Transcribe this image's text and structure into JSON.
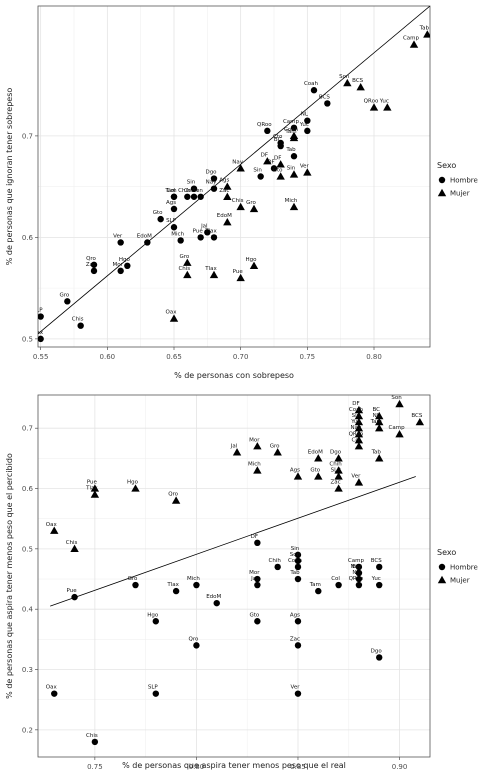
{
  "chart_data": [
    {
      "type": "scatter",
      "xlabel": "% de personas con sobrepeso",
      "ylabel": "% de personas que ignoran tener sobrepeso",
      "xlim": [
        0.548,
        0.842
      ],
      "ylim": [
        0.492,
        0.828
      ],
      "xticks": [
        0.55,
        0.6,
        0.65,
        0.7,
        0.75,
        0.8
      ],
      "xtick_labels": [
        "0.55",
        "0.60",
        "0.65",
        "0.70",
        "0.75",
        "0.80"
      ],
      "yticks": [
        0.5,
        0.6,
        0.7
      ],
      "ytick_labels": [
        "0.5",
        "0.6",
        "0.7"
      ],
      "grid": true,
      "legend": {
        "title": "Sexo",
        "position": "right",
        "entries": [
          {
            "label": "Hombre",
            "shape": "circle"
          },
          {
            "label": "Mujer",
            "shape": "triangle"
          }
        ]
      },
      "trendline": {
        "x": [
          0.548,
          0.842
        ],
        "y": [
          0.505,
          0.828
        ]
      },
      "series": [
        {
          "name": "Hombre",
          "shape": "circle",
          "points": [
            {
              "label": "Oax",
              "x": 0.55,
              "y": 0.5
            },
            {
              "label": "SLP",
              "x": 0.55,
              "y": 0.522
            },
            {
              "label": "Gro",
              "x": 0.57,
              "y": 0.537
            },
            {
              "label": "Chis",
              "x": 0.58,
              "y": 0.513
            },
            {
              "label": "Qro",
              "x": 0.59,
              "y": 0.573
            },
            {
              "label": "Zac",
              "x": 0.59,
              "y": 0.567
            },
            {
              "label": "Mor",
              "x": 0.61,
              "y": 0.567
            },
            {
              "label": "Hgo",
              "x": 0.615,
              "y": 0.572
            },
            {
              "label": "Ver",
              "x": 0.61,
              "y": 0.595
            },
            {
              "label": "EdoM",
              "x": 0.63,
              "y": 0.595
            },
            {
              "label": "Gto",
              "x": 0.64,
              "y": 0.618
            },
            {
              "label": "SLP",
              "x": 0.65,
              "y": 0.61
            },
            {
              "label": "Ags",
              "x": 0.65,
              "y": 0.628
            },
            {
              "label": "Tam",
              "x": 0.65,
              "y": 0.64
            },
            {
              "label": "Col",
              "x": 0.65,
              "y": 0.64
            },
            {
              "label": "Chih",
              "x": 0.66,
              "y": 0.64
            },
            {
              "label": "Coah",
              "x": 0.665,
              "y": 0.64
            },
            {
              "label": "Sin",
              "x": 0.665,
              "y": 0.648
            },
            {
              "label": "Son",
              "x": 0.67,
              "y": 0.64
            },
            {
              "label": "Nay",
              "x": 0.68,
              "y": 0.648
            },
            {
              "label": "Dgo",
              "x": 0.68,
              "y": 0.658
            },
            {
              "label": "Jal",
              "x": 0.675,
              "y": 0.605
            },
            {
              "label": "Pue",
              "x": 0.67,
              "y": 0.6
            },
            {
              "label": "Mich",
              "x": 0.655,
              "y": 0.597
            },
            {
              "label": "Tlax",
              "x": 0.68,
              "y": 0.6
            },
            {
              "label": "QRoo",
              "x": 0.72,
              "y": 0.705
            },
            {
              "label": "BC",
              "x": 0.73,
              "y": 0.69
            },
            {
              "label": "Camp",
              "x": 0.74,
              "y": 0.708
            },
            {
              "label": "Tab",
              "x": 0.74,
              "y": 0.68
            },
            {
              "label": "Cto",
              "x": 0.73,
              "y": 0.693
            },
            {
              "label": "NL",
              "x": 0.75,
              "y": 0.715
            },
            {
              "label": "Yuc",
              "x": 0.75,
              "y": 0.705
            },
            {
              "label": "BCS",
              "x": 0.765,
              "y": 0.732
            },
            {
              "label": "Coah",
              "x": 0.755,
              "y": 0.745
            },
            {
              "label": "DF",
              "x": 0.725,
              "y": 0.668
            },
            {
              "label": "Sin",
              "x": 0.715,
              "y": 0.66
            }
          ]
        },
        {
          "name": "Mujer",
          "shape": "triangle",
          "points": [
            {
              "label": "Oax",
              "x": 0.65,
              "y": 0.52
            },
            {
              "label": "Chis",
              "x": 0.66,
              "y": 0.563
            },
            {
              "label": "Gro",
              "x": 0.66,
              "y": 0.575
            },
            {
              "label": "Tlax",
              "x": 0.68,
              "y": 0.563
            },
            {
              "label": "Pue",
              "x": 0.7,
              "y": 0.56
            },
            {
              "label": "Hgo",
              "x": 0.71,
              "y": 0.572
            },
            {
              "label": "Ags",
              "x": 0.69,
              "y": 0.65
            },
            {
              "label": "Zac",
              "x": 0.69,
              "y": 0.64
            },
            {
              "label": "Chis",
              "x": 0.7,
              "y": 0.63
            },
            {
              "label": "EdoM",
              "x": 0.69,
              "y": 0.615
            },
            {
              "label": "Gro",
              "x": 0.71,
              "y": 0.628
            },
            {
              "label": "Mich",
              "x": 0.74,
              "y": 0.63
            },
            {
              "label": "Nay",
              "x": 0.7,
              "y": 0.668
            },
            {
              "label": "DF",
              "x": 0.72,
              "y": 0.675
            },
            {
              "label": "Gto",
              "x": 0.73,
              "y": 0.66
            },
            {
              "label": "Sin",
              "x": 0.74,
              "y": 0.662
            },
            {
              "label": "Ver",
              "x": 0.75,
              "y": 0.664
            },
            {
              "label": "Tam",
              "x": 0.74,
              "y": 0.698
            },
            {
              "label": "DF",
              "x": 0.73,
              "y": 0.672
            },
            {
              "label": "Coah",
              "x": 0.74,
              "y": 0.7
            },
            {
              "label": "Son",
              "x": 0.78,
              "y": 0.752
            },
            {
              "label": "BCS",
              "x": 0.79,
              "y": 0.748
            },
            {
              "label": "QRoo",
              "x": 0.8,
              "y": 0.728
            },
            {
              "label": "Yuc",
              "x": 0.81,
              "y": 0.728
            },
            {
              "label": "Camp",
              "x": 0.83,
              "y": 0.79
            },
            {
              "label": "Tab",
              "x": 0.84,
              "y": 0.8
            }
          ]
        }
      ]
    },
    {
      "type": "scatter",
      "xlabel": "% de personas que aspira tener menos peso que el real",
      "ylabel": "% de personas que aspira tener menos peso que el percibido",
      "xlim": [
        0.722,
        0.915
      ],
      "ylim": [
        0.155,
        0.755
      ],
      "xticks": [
        0.75,
        0.8,
        0.85,
        0.9
      ],
      "xtick_labels": [
        "0.75",
        "0.80",
        "0.85",
        "0.90"
      ],
      "yticks": [
        0.2,
        0.3,
        0.4,
        0.5,
        0.6,
        0.7
      ],
      "ytick_labels": [
        "0.2",
        "0.3",
        "0.4",
        "0.5",
        "0.6",
        "0.7"
      ],
      "grid": true,
      "legend": {
        "title": "Sexo",
        "position": "right",
        "entries": [
          {
            "label": "Hombre",
            "shape": "circle"
          },
          {
            "label": "Mujer",
            "shape": "triangle"
          }
        ]
      },
      "trendline": {
        "x": [
          0.728,
          0.908
        ],
        "y": [
          0.405,
          0.62
        ]
      },
      "series": [
        {
          "name": "Hombre",
          "shape": "circle",
          "points": [
            {
              "label": "Oax",
              "x": 0.73,
              "y": 0.26
            },
            {
              "label": "Chis",
              "x": 0.75,
              "y": 0.18
            },
            {
              "label": "Pue",
              "x": 0.74,
              "y": 0.42
            },
            {
              "label": "SLP",
              "x": 0.78,
              "y": 0.26
            },
            {
              "label": "Gro",
              "x": 0.77,
              "y": 0.44
            },
            {
              "label": "Hgo",
              "x": 0.78,
              "y": 0.38
            },
            {
              "label": "Tlax",
              "x": 0.79,
              "y": 0.43
            },
            {
              "label": "Mich",
              "x": 0.8,
              "y": 0.44
            },
            {
              "label": "Qro",
              "x": 0.8,
              "y": 0.34
            },
            {
              "label": "EdoM",
              "x": 0.81,
              "y": 0.41
            },
            {
              "label": "Gto",
              "x": 0.83,
              "y": 0.38
            },
            {
              "label": "Jal",
              "x": 0.83,
              "y": 0.44
            },
            {
              "label": "Mor",
              "x": 0.83,
              "y": 0.45
            },
            {
              "label": "Chih",
              "x": 0.84,
              "y": 0.47
            },
            {
              "label": "DF",
              "x": 0.83,
              "y": 0.51
            },
            {
              "label": "Sin",
              "x": 0.85,
              "y": 0.49
            },
            {
              "label": "Coah",
              "x": 0.85,
              "y": 0.47
            },
            {
              "label": "Son",
              "x": 0.85,
              "y": 0.48
            },
            {
              "label": "Tab",
              "x": 0.85,
              "y": 0.45
            },
            {
              "label": "Ags",
              "x": 0.85,
              "y": 0.38
            },
            {
              "label": "Zac",
              "x": 0.85,
              "y": 0.34
            },
            {
              "label": "Ver",
              "x": 0.85,
              "y": 0.26
            },
            {
              "label": "Tam",
              "x": 0.86,
              "y": 0.43
            },
            {
              "label": "Col",
              "x": 0.87,
              "y": 0.44
            },
            {
              "label": "BC",
              "x": 0.88,
              "y": 0.46
            },
            {
              "label": "QRoo",
              "x": 0.88,
              "y": 0.44
            },
            {
              "label": "NL",
              "x": 0.88,
              "y": 0.45
            },
            {
              "label": "Camp",
              "x": 0.88,
              "y": 0.47
            },
            {
              "label": "Nay",
              "x": 0.88,
              "y": 0.46
            },
            {
              "label": "BCS",
              "x": 0.89,
              "y": 0.47
            },
            {
              "label": "Yuc",
              "x": 0.89,
              "y": 0.44
            },
            {
              "label": "Dgo",
              "x": 0.89,
              "y": 0.32
            }
          ]
        },
        {
          "name": "Mujer",
          "shape": "triangle",
          "points": [
            {
              "label": "Oax",
              "x": 0.73,
              "y": 0.53
            },
            {
              "label": "Chis",
              "x": 0.74,
              "y": 0.5
            },
            {
              "label": "Pue",
              "x": 0.75,
              "y": 0.6
            },
            {
              "label": "Tlax",
              "x": 0.75,
              "y": 0.59
            },
            {
              "label": "Hgo",
              "x": 0.77,
              "y": 0.6
            },
            {
              "label": "Qro",
              "x": 0.79,
              "y": 0.58
            },
            {
              "label": "Jal",
              "x": 0.82,
              "y": 0.66
            },
            {
              "label": "Mor",
              "x": 0.83,
              "y": 0.67
            },
            {
              "label": "Gro",
              "x": 0.84,
              "y": 0.66
            },
            {
              "label": "Mich",
              "x": 0.83,
              "y": 0.63
            },
            {
              "label": "Ags",
              "x": 0.85,
              "y": 0.62
            },
            {
              "label": "EdoM",
              "x": 0.86,
              "y": 0.65
            },
            {
              "label": "Gto",
              "x": 0.86,
              "y": 0.62
            },
            {
              "label": "SLP",
              "x": 0.87,
              "y": 0.62
            },
            {
              "label": "Dgo",
              "x": 0.87,
              "y": 0.65
            },
            {
              "label": "Chih",
              "x": 0.87,
              "y": 0.63
            },
            {
              "label": "Zac",
              "x": 0.87,
              "y": 0.6
            },
            {
              "label": "Ver",
              "x": 0.88,
              "y": 0.61
            },
            {
              "label": "Col",
              "x": 0.88,
              "y": 0.67
            },
            {
              "label": "Tab",
              "x": 0.89,
              "y": 0.65
            },
            {
              "label": "DF",
              "x": 0.88,
              "y": 0.73
            },
            {
              "label": "Coah",
              "x": 0.88,
              "y": 0.72
            },
            {
              "label": "Sin",
              "x": 0.88,
              "y": 0.71
            },
            {
              "label": "Yuc",
              "x": 0.88,
              "y": 0.7
            },
            {
              "label": "Nay",
              "x": 0.88,
              "y": 0.69
            },
            {
              "label": "QRoo",
              "x": 0.88,
              "y": 0.68
            },
            {
              "label": "BC",
              "x": 0.89,
              "y": 0.72
            },
            {
              "label": "Son",
              "x": 0.9,
              "y": 0.74
            },
            {
              "label": "NL",
              "x": 0.89,
              "y": 0.71
            },
            {
              "label": "Tam",
              "x": 0.89,
              "y": 0.7
            },
            {
              "label": "Camp",
              "x": 0.9,
              "y": 0.69
            },
            {
              "label": "BCS",
              "x": 0.91,
              "y": 0.71
            }
          ]
        }
      ]
    }
  ]
}
